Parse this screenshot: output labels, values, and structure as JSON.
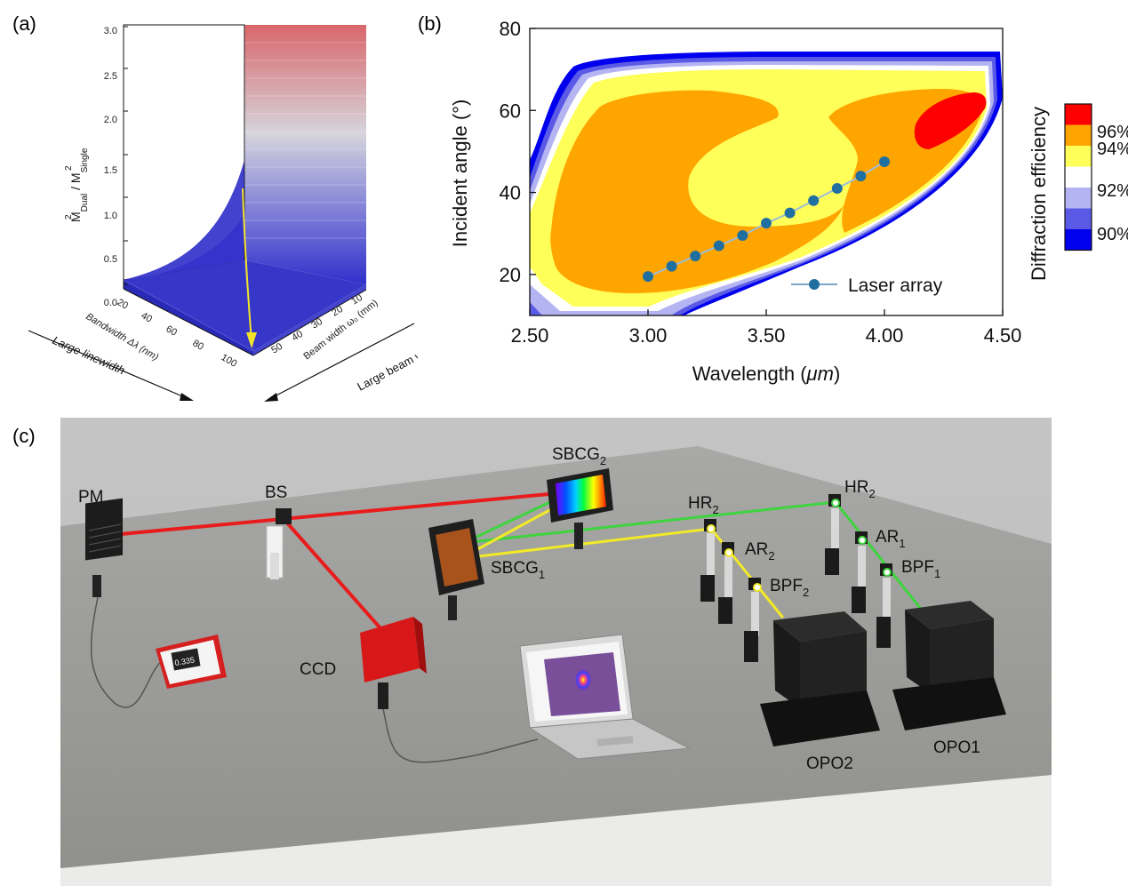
{
  "panels": {
    "a": "(a)",
    "b": "(b)",
    "c": "(c)"
  },
  "panel_a": {
    "z_ticks": [
      "0.0",
      "0.5",
      "1.0",
      "1.5",
      "2.0",
      "2.5",
      "3.0"
    ],
    "z_label": {
      "main1": "M",
      "sup1": "2",
      "sub1": "Dual",
      "slash": "/ M",
      "sup2": "2",
      "sub2": "Single"
    },
    "bandwidth_ticks": [
      "20",
      "40",
      "60",
      "80",
      "100"
    ],
    "bandwidth_label": "Bandwidth Δλ (nm)",
    "beam_ticks": [
      "10",
      "20",
      "30",
      "40",
      "50"
    ],
    "beam_label": "Beam width ω₀ (mm)",
    "arrow_left": "Large linewidth",
    "arrow_right": "Large beam width",
    "colors": {
      "top": "#d9676b",
      "mid": "#d4d4dc",
      "bottom": "#3030cc",
      "arrow": "#f2e32a"
    }
  },
  "chart_data": {
    "type": "scatter",
    "xlabel_prefix": "Wavelength (",
    "xlabel_unit": "μm",
    "xlabel_suffix": ")",
    "ylabel": "Incident angle (°)",
    "x_ticks": [
      "2.50",
      "3.00",
      "3.50",
      "4.00",
      "4.50"
    ],
    "y_ticks": [
      "20",
      "40",
      "60",
      "80"
    ],
    "xlim": [
      2.5,
      4.5
    ],
    "ylim": [
      10,
      80
    ],
    "series": [
      {
        "name": "Laser array",
        "x": [
          3.0,
          3.1,
          3.2,
          3.3,
          3.4,
          3.5,
          3.6,
          3.7,
          3.8,
          3.9,
          4.0
        ],
        "y": [
          19.5,
          22,
          24.5,
          27,
          29.5,
          32.5,
          35,
          38,
          41,
          44,
          47.5
        ]
      }
    ],
    "colorbar": {
      "title": "Diffraction efficiency",
      "tick_labels": [
        "90%",
        "92%",
        "94%",
        "96%"
      ],
      "levels": [
        "#0000ee",
        "#5a5ae6",
        "#b4b4f2",
        "#ffffff",
        "#ffff5a",
        "#ffa500",
        "#ff0000"
      ]
    },
    "legend_position": "bottom-right"
  },
  "panel_c": {
    "labels": {
      "pm": "PM",
      "bs": "BS",
      "ccd": "CCD",
      "sbcg2": "SBCG",
      "sbcg2_sub": "2",
      "sbcg1": "SBCG",
      "sbcg1_sub": "1",
      "hr2a": "HR",
      "hr2a_sub": "2",
      "hr2b": "HR",
      "hr2b_sub": "2",
      "ar2": "AR",
      "ar2_sub": "2",
      "ar1": "AR",
      "ar1_sub": "1",
      "bpf2": "BPF",
      "bpf2_sub": "2",
      "bpf1": "BPF",
      "bpf1_sub": "1",
      "opo2": "OPO2",
      "opo1": "OPO1",
      "meter_reading": "0.335"
    },
    "colors": {
      "red_beam": "#e81c1c",
      "green_beam": "#3ed43e",
      "yellow_beam": "#f2ea28"
    }
  }
}
